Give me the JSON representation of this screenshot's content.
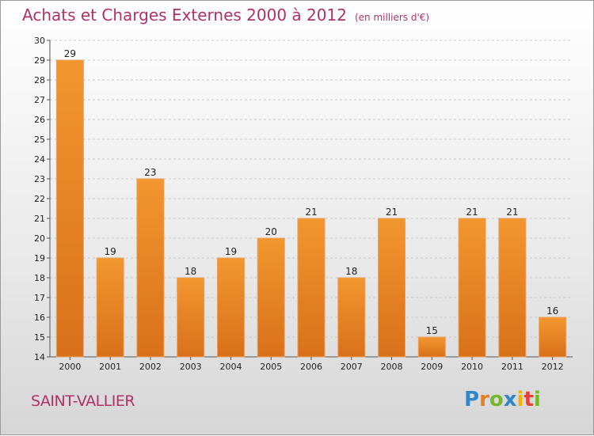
{
  "title": "Achats et Charges Externes 2000 à 2012",
  "subtitle": "(en milliers d'€)",
  "city": "SAINT-VALLIER",
  "logo": "Proxiti",
  "colors": {
    "bar": "#f2962f",
    "barDark": "#d9701a",
    "title": "#b0316a"
  },
  "chart_data": {
    "type": "bar",
    "title": "Achats et Charges Externes 2000 à 2012",
    "subtitle": "(en milliers d'€)",
    "categories": [
      "2000",
      "2001",
      "2002",
      "2003",
      "2004",
      "2005",
      "2006",
      "2007",
      "2008",
      "2009",
      "2010",
      "2011",
      "2012"
    ],
    "values": [
      29,
      19,
      23,
      18,
      19,
      20,
      21,
      18,
      21,
      15,
      21,
      21,
      16
    ],
    "ylim": [
      14,
      30
    ],
    "yticks": [
      14,
      15,
      16,
      17,
      18,
      19,
      20,
      21,
      22,
      23,
      24,
      25,
      26,
      27,
      28,
      29,
      30
    ],
    "grid": true
  }
}
